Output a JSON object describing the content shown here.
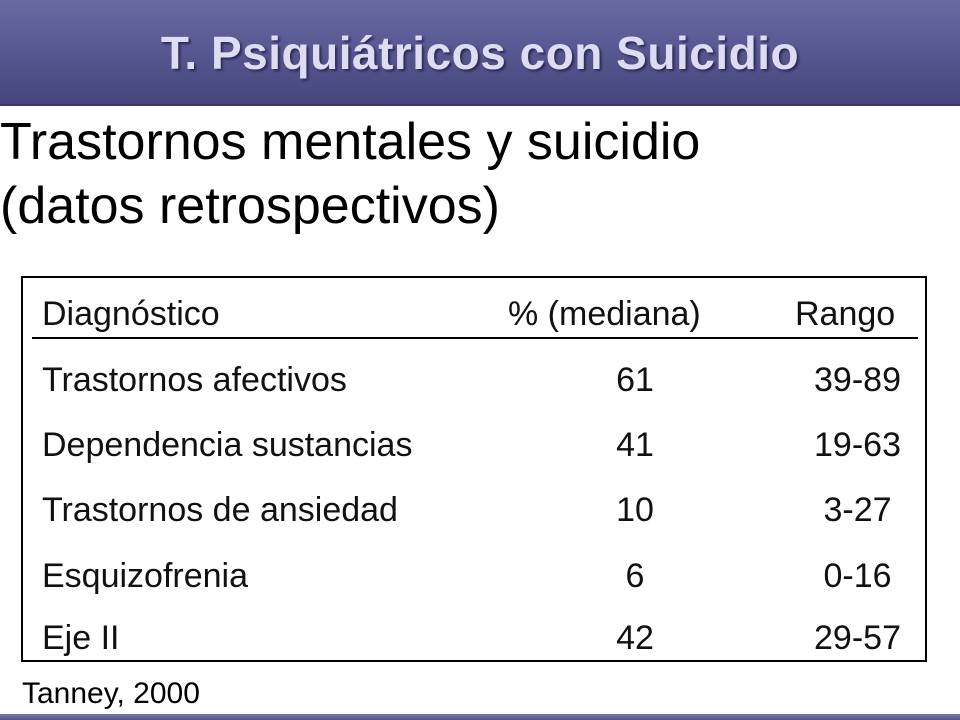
{
  "slide": {
    "title": "T. Psiquiátricos con Suicidio",
    "subtitle_line1": "Trastornos mentales y suicidio",
    "subtitle_line2": "(datos retrospectivos)",
    "source": "Tanney, 2000"
  },
  "table": {
    "headers": {
      "diagnostico": "Diagnóstico",
      "mediana": "% (mediana)",
      "rango": "Rango"
    },
    "rows": [
      {
        "diagnostico": "Trastornos afectivos",
        "mediana": "61",
        "rango": "39-89"
      },
      {
        "diagnostico": "Dependencia sustancias",
        "mediana": "41",
        "rango": "19-63"
      },
      {
        "diagnostico": "Trastornos de ansiedad",
        "mediana": "10",
        "rango": "3-27"
      },
      {
        "diagnostico": "Esquizofrenia",
        "mediana": "6",
        "rango": "0-16"
      },
      {
        "diagnostico": "Eje II",
        "mediana": "42",
        "rango": "29-57"
      }
    ]
  },
  "colors": {
    "header_band": "#5a5a94",
    "title_text": "#dcdcf2"
  }
}
